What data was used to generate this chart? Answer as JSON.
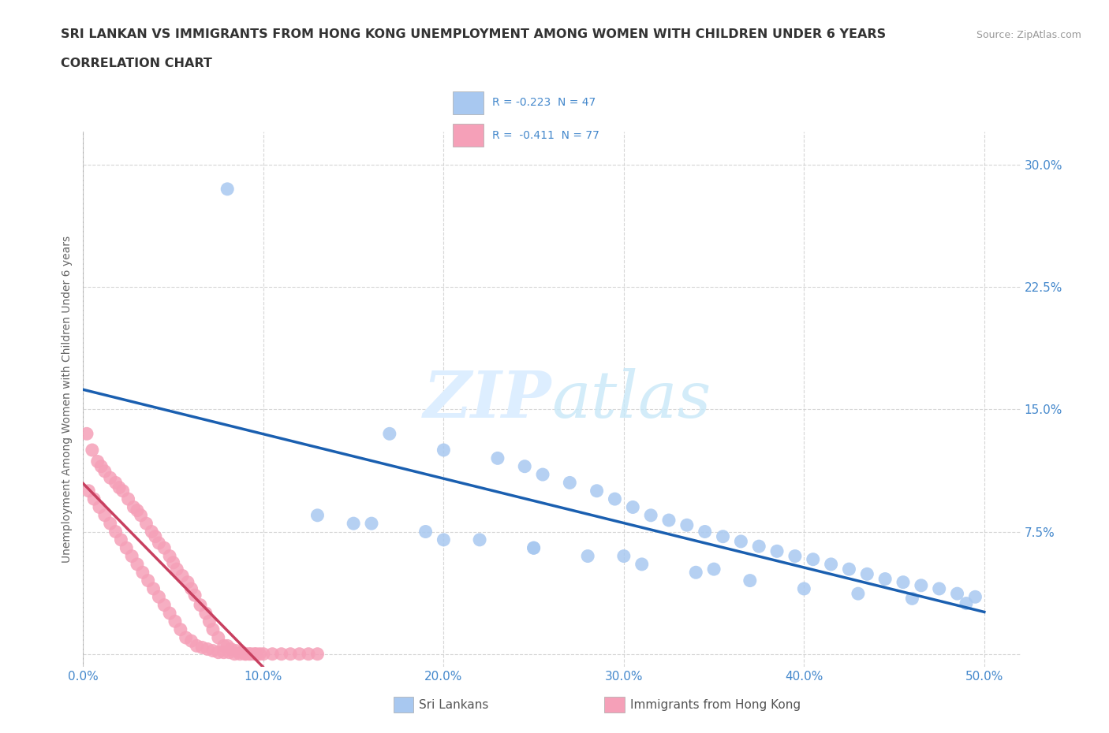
{
  "title_line1": "SRI LANKAN VS IMMIGRANTS FROM HONG KONG UNEMPLOYMENT AMONG WOMEN WITH CHILDREN UNDER 6 YEARS",
  "title_line2": "CORRELATION CHART",
  "source_text": "Source: ZipAtlas.com",
  "ylabel": "Unemployment Among Women with Children Under 6 years",
  "xlim": [
    0.0,
    0.52
  ],
  "ylim": [
    -0.008,
    0.32
  ],
  "xticks": [
    0.0,
    0.1,
    0.2,
    0.3,
    0.4,
    0.5
  ],
  "yticks": [
    0.0,
    0.075,
    0.15,
    0.225,
    0.3
  ],
  "ytick_labels": [
    "",
    "7.5%",
    "15.0%",
    "22.5%",
    "30.0%"
  ],
  "xtick_labels": [
    "0.0%",
    "10.0%",
    "20.0%",
    "30.0%",
    "40.0%",
    "50.0%"
  ],
  "sri_lankan_color": "#a8c8f0",
  "hk_color": "#f5a0b8",
  "trend_sri_color": "#1a5fb0",
  "trend_hk_color": "#c84060",
  "watermark_color": "#ddeeff",
  "background_color": "#ffffff",
  "grid_color": "#cccccc",
  "axis_color": "#4488cc",
  "title_color": "#333333",
  "sl_x": [
    0.08,
    0.17,
    0.2,
    0.23,
    0.245,
    0.255,
    0.27,
    0.285,
    0.295,
    0.305,
    0.315,
    0.325,
    0.335,
    0.345,
    0.355,
    0.365,
    0.375,
    0.385,
    0.395,
    0.405,
    0.415,
    0.425,
    0.435,
    0.445,
    0.455,
    0.465,
    0.475,
    0.485,
    0.495,
    0.13,
    0.16,
    0.19,
    0.22,
    0.25,
    0.28,
    0.31,
    0.34,
    0.37,
    0.4,
    0.43,
    0.46,
    0.49,
    0.35,
    0.3,
    0.25,
    0.2,
    0.15
  ],
  "sl_y": [
    0.285,
    0.135,
    0.125,
    0.12,
    0.115,
    0.11,
    0.105,
    0.1,
    0.095,
    0.09,
    0.085,
    0.082,
    0.079,
    0.075,
    0.072,
    0.069,
    0.066,
    0.063,
    0.06,
    0.058,
    0.055,
    0.052,
    0.049,
    0.046,
    0.044,
    0.042,
    0.04,
    0.037,
    0.035,
    0.085,
    0.08,
    0.075,
    0.07,
    0.065,
    0.06,
    0.055,
    0.05,
    0.045,
    0.04,
    0.037,
    0.034,
    0.031,
    0.052,
    0.06,
    0.065,
    0.07,
    0.08
  ],
  "hk_x": [
    0.005,
    0.008,
    0.01,
    0.012,
    0.015,
    0.018,
    0.02,
    0.022,
    0.025,
    0.028,
    0.03,
    0.032,
    0.035,
    0.038,
    0.04,
    0.042,
    0.045,
    0.048,
    0.05,
    0.052,
    0.055,
    0.058,
    0.06,
    0.062,
    0.065,
    0.068,
    0.07,
    0.072,
    0.075,
    0.078,
    0.08,
    0.082,
    0.085,
    0.088,
    0.09,
    0.092,
    0.095,
    0.098,
    0.1,
    0.105,
    0.11,
    0.115,
    0.12,
    0.125,
    0.13,
    0.003,
    0.006,
    0.009,
    0.012,
    0.015,
    0.018,
    0.021,
    0.024,
    0.027,
    0.03,
    0.033,
    0.036,
    0.039,
    0.042,
    0.045,
    0.048,
    0.051,
    0.054,
    0.057,
    0.06,
    0.063,
    0.066,
    0.069,
    0.072,
    0.075,
    0.078,
    0.081,
    0.084,
    0.087,
    0.09,
    0.093,
    0.096,
    0.002
  ],
  "hk_y": [
    0.125,
    0.118,
    0.115,
    0.112,
    0.108,
    0.105,
    0.102,
    0.1,
    0.095,
    0.09,
    0.088,
    0.085,
    0.08,
    0.075,
    0.072,
    0.068,
    0.065,
    0.06,
    0.056,
    0.052,
    0.048,
    0.044,
    0.04,
    0.036,
    0.03,
    0.025,
    0.02,
    0.015,
    0.01,
    0.005,
    0.005,
    0.003,
    0.002,
    0.001,
    0.0,
    0.0,
    0.0,
    0.0,
    0.0,
    0.0,
    0.0,
    0.0,
    0.0,
    0.0,
    0.0,
    0.1,
    0.095,
    0.09,
    0.085,
    0.08,
    0.075,
    0.07,
    0.065,
    0.06,
    0.055,
    0.05,
    0.045,
    0.04,
    0.035,
    0.03,
    0.025,
    0.02,
    0.015,
    0.01,
    0.008,
    0.005,
    0.004,
    0.003,
    0.002,
    0.001,
    0.001,
    0.001,
    0.0,
    0.0,
    0.0,
    0.0,
    0.0,
    0.135
  ]
}
